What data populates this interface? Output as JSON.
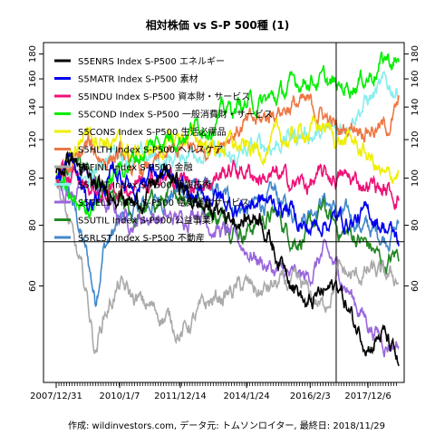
{
  "chart_data": {
    "type": "line",
    "title": "相対株価 vs S-P 500種 (1)",
    "caption": "作成: wildinvestors.com, データ元: トムソンロイター, 最終日: 2018/11/29",
    "scale": "log",
    "ylim": [
      38,
      190
    ],
    "y_ticks": [
      60,
      80,
      100,
      120,
      140,
      160,
      180
    ],
    "x_range": [
      "2007/12/31",
      "2018/11/29"
    ],
    "x_ticks": [
      "2007/12/31",
      "2010/1/7",
      "2011/12/14",
      "2014/1/24",
      "2016/2/3",
      "2017/12/6"
    ],
    "x_minor_ticks_per_month": true,
    "crosshair": {
      "date": "2016/12/1",
      "value": 74
    },
    "legend_position": "top-left",
    "series": [
      {
        "name": "S5ENRS Index S-P500 エネルギー",
        "color": "#000000",
        "points": [
          [
            "2007/12/31",
            100
          ],
          [
            "2008/6/30",
            112
          ],
          [
            "2008/12/31",
            98
          ],
          [
            "2009/6/30",
            92
          ],
          [
            "2009/12/31",
            96
          ],
          [
            "2010/6/30",
            88
          ],
          [
            "2010/12/31",
            95
          ],
          [
            "2011/6/30",
            102
          ],
          [
            "2011/12/31",
            96
          ],
          [
            "2012/6/30",
            88
          ],
          [
            "2012/12/31",
            86
          ],
          [
            "2013/6/30",
            84
          ],
          [
            "2013/12/31",
            82
          ],
          [
            "2014/6/30",
            85
          ],
          [
            "2014/12/31",
            70
          ],
          [
            "2015/6/30",
            64
          ],
          [
            "2015/12/31",
            54
          ],
          [
            "2016/6/30",
            58
          ],
          [
            "2016/12/31",
            60
          ],
          [
            "2017/6/30",
            50
          ],
          [
            "2017/12/31",
            46
          ],
          [
            "2018/5/31",
            48
          ],
          [
            "2018/11/29",
            41
          ]
        ]
      },
      {
        "name": "S5MATR Index S-P500 素材",
        "color": "#0000ee",
        "points": [
          [
            "2007/12/31",
            100
          ],
          [
            "2008/6/30",
            108
          ],
          [
            "2008/12/31",
            88
          ],
          [
            "2009/6/30",
            96
          ],
          [
            "2009/12/31",
            102
          ],
          [
            "2010/6/30",
            96
          ],
          [
            "2010/12/31",
            104
          ],
          [
            "2011/6/30",
            100
          ],
          [
            "2011/12/31",
            92
          ],
          [
            "2012/6/30",
            90
          ],
          [
            "2012/12/31",
            93
          ],
          [
            "2013/6/30",
            88
          ],
          [
            "2013/12/31",
            88
          ],
          [
            "2014/6/30",
            90
          ],
          [
            "2014/12/31",
            88
          ],
          [
            "2015/6/30",
            86
          ],
          [
            "2015/12/31",
            78
          ],
          [
            "2016/6/30",
            82
          ],
          [
            "2016/12/31",
            82
          ],
          [
            "2017/6/30",
            82
          ],
          [
            "2017/12/31",
            84
          ],
          [
            "2018/6/30",
            80
          ],
          [
            "2018/11/29",
            74
          ]
        ]
      },
      {
        "name": "S5INDU Index S-P500 資本財・サービス",
        "color": "#ee1177",
        "points": [
          [
            "2007/12/31",
            100
          ],
          [
            "2008/6/30",
            100
          ],
          [
            "2008/12/31",
            96
          ],
          [
            "2009/6/30",
            92
          ],
          [
            "2009/12/31",
            95
          ],
          [
            "2010/6/30",
            98
          ],
          [
            "2010/12/31",
            103
          ],
          [
            "2011/6/30",
            100
          ],
          [
            "2011/12/31",
            99
          ],
          [
            "2012/6/30",
            98
          ],
          [
            "2012/12/31",
            100
          ],
          [
            "2013/6/30",
            104
          ],
          [
            "2013/12/31",
            104
          ],
          [
            "2014/6/30",
            101
          ],
          [
            "2014/12/31",
            100
          ],
          [
            "2015/6/30",
            98
          ],
          [
            "2015/12/31",
            97
          ],
          [
            "2016/6/30",
            100
          ],
          [
            "2016/12/31",
            101
          ],
          [
            "2017/6/30",
            98
          ],
          [
            "2017/12/31",
            98
          ],
          [
            "2018/6/30",
            94
          ],
          [
            "2018/11/29",
            92
          ]
        ]
      },
      {
        "name": "S5COND Index S-P500 一般消費財・サービス",
        "color": "#00ee00",
        "points": [
          [
            "2007/12/31",
            100
          ],
          [
            "2008/6/30",
            88
          ],
          [
            "2008/12/31",
            88
          ],
          [
            "2009/6/30",
            94
          ],
          [
            "2009/12/31",
            104
          ],
          [
            "2010/6/30",
            110
          ],
          [
            "2010/12/31",
            116
          ],
          [
            "2011/6/30",
            122
          ],
          [
            "2011/12/31",
            124
          ],
          [
            "2012/6/30",
            128
          ],
          [
            "2012/12/31",
            132
          ],
          [
            "2013/6/30",
            138
          ],
          [
            "2013/12/31",
            142
          ],
          [
            "2014/6/30",
            142
          ],
          [
            "2014/12/31",
            146
          ],
          [
            "2015/6/30",
            154
          ],
          [
            "2015/12/31",
            162
          ],
          [
            "2016/6/30",
            158
          ],
          [
            "2016/12/31",
            152
          ],
          [
            "2017/6/30",
            158
          ],
          [
            "2017/12/31",
            164
          ],
          [
            "2018/6/30",
            176
          ],
          [
            "2018/11/29",
            172
          ]
        ]
      },
      {
        "name": "S5CONS Index S-P500 生活必需品",
        "color": "#eeee00",
        "points": [
          [
            "2007/12/31",
            100
          ],
          [
            "2008/6/30",
            112
          ],
          [
            "2008/12/31",
            128
          ],
          [
            "2009/6/30",
            122
          ],
          [
            "2009/12/31",
            116
          ],
          [
            "2010/6/30",
            112
          ],
          [
            "2010/12/31",
            114
          ],
          [
            "2011/6/30",
            116
          ],
          [
            "2011/12/31",
            122
          ],
          [
            "2012/6/30",
            120
          ],
          [
            "2012/12/31",
            116
          ],
          [
            "2013/6/30",
            118
          ],
          [
            "2013/12/31",
            114
          ],
          [
            "2014/6/30",
            114
          ],
          [
            "2014/12/31",
            120
          ],
          [
            "2015/6/30",
            120
          ],
          [
            "2015/12/31",
            126
          ],
          [
            "2016/6/30",
            128
          ],
          [
            "2016/12/31",
            120
          ],
          [
            "2017/6/30",
            118
          ],
          [
            "2017/12/31",
            110
          ],
          [
            "2018/6/30",
            98
          ],
          [
            "2018/11/29",
            104
          ]
        ]
      },
      {
        "name": "S5HLTH Index S-P500 ヘルスケア",
        "color": "#ee7744",
        "points": [
          [
            "2007/12/31",
            100
          ],
          [
            "2008/6/30",
            104
          ],
          [
            "2008/12/31",
            116
          ],
          [
            "2009/6/30",
            110
          ],
          [
            "2009/12/31",
            112
          ],
          [
            "2010/6/30",
            102
          ],
          [
            "2010/12/31",
            104
          ],
          [
            "2011/6/30",
            110
          ],
          [
            "2011/12/31",
            114
          ],
          [
            "2012/6/30",
            116
          ],
          [
            "2012/12/31",
            118
          ],
          [
            "2013/6/30",
            124
          ],
          [
            "2013/12/31",
            128
          ],
          [
            "2014/6/30",
            130
          ],
          [
            "2014/12/31",
            138
          ],
          [
            "2015/6/30",
            142
          ],
          [
            "2015/12/31",
            140
          ],
          [
            "2016/6/30",
            136
          ],
          [
            "2016/12/31",
            124
          ],
          [
            "2017/6/30",
            130
          ],
          [
            "2017/12/31",
            128
          ],
          [
            "2018/6/30",
            126
          ],
          [
            "2018/11/29",
            140
          ]
        ]
      },
      {
        "name": "S5FINL Index S-P500 金融",
        "color": "#aaaaaa",
        "points": [
          [
            "2007/12/31",
            100
          ],
          [
            "2008/6/30",
            76
          ],
          [
            "2008/12/31",
            56
          ],
          [
            "2009/3/31",
            44
          ],
          [
            "2009/6/30",
            52
          ],
          [
            "2009/12/31",
            60
          ],
          [
            "2010/6/30",
            56
          ],
          [
            "2010/12/31",
            54
          ],
          [
            "2011/6/30",
            52
          ],
          [
            "2011/12/31",
            48
          ],
          [
            "2012/6/30",
            52
          ],
          [
            "2012/12/31",
            56
          ],
          [
            "2013/6/30",
            58
          ],
          [
            "2013/12/31",
            60
          ],
          [
            "2014/6/30",
            58
          ],
          [
            "2014/12/31",
            60
          ],
          [
            "2015/6/30",
            60
          ],
          [
            "2015/12/31",
            58
          ],
          [
            "2016/6/30",
            54
          ],
          [
            "2016/12/31",
            64
          ],
          [
            "2017/6/30",
            62
          ],
          [
            "2017/12/31",
            64
          ],
          [
            "2018/6/30",
            62
          ],
          [
            "2018/11/29",
            62
          ]
        ]
      },
      {
        "name": "S5INFT Index S-P500 情報技術",
        "color": "#88eeee",
        "points": [
          [
            "2007/12/31",
            100
          ],
          [
            "2008/6/30",
            102
          ],
          [
            "2008/12/31",
            96
          ],
          [
            "2009/6/30",
            110
          ],
          [
            "2009/12/31",
            116
          ],
          [
            "2010/6/30",
            108
          ],
          [
            "2010/12/31",
            110
          ],
          [
            "2011/6/30",
            108
          ],
          [
            "2011/12/31",
            112
          ],
          [
            "2012/6/30",
            116
          ],
          [
            "2012/12/31",
            112
          ],
          [
            "2013/6/30",
            108
          ],
          [
            "2013/12/31",
            112
          ],
          [
            "2014/6/30",
            116
          ],
          [
            "2014/12/31",
            118
          ],
          [
            "2015/6/30",
            122
          ],
          [
            "2015/12/31",
            124
          ],
          [
            "2016/6/30",
            122
          ],
          [
            "2016/12/31",
            126
          ],
          [
            "2017/6/30",
            138
          ],
          [
            "2017/12/31",
            146
          ],
          [
            "2018/6/30",
            154
          ],
          [
            "2018/11/29",
            152
          ]
        ]
      },
      {
        "name": "S5TELS Index S-P500 電気通信サービス",
        "color": "#9966dd",
        "points": [
          [
            "2007/12/31",
            100
          ],
          [
            "2008/6/30",
            92
          ],
          [
            "2008/12/31",
            104
          ],
          [
            "2009/6/30",
            88
          ],
          [
            "2009/12/31",
            84
          ],
          [
            "2010/6/30",
            82
          ],
          [
            "2010/12/31",
            84
          ],
          [
            "2011/6/30",
            82
          ],
          [
            "2011/12/31",
            82
          ],
          [
            "2012/6/30",
            88
          ],
          [
            "2012/12/31",
            80
          ],
          [
            "2013/6/30",
            76
          ],
          [
            "2013/12/31",
            72
          ],
          [
            "2014/6/30",
            68
          ],
          [
            "2014/12/31",
            64
          ],
          [
            "2015/6/30",
            62
          ],
          [
            "2015/12/31",
            62
          ],
          [
            "2016/6/30",
            70
          ],
          [
            "2016/12/31",
            64
          ],
          [
            "2017/6/30",
            56
          ],
          [
            "2017/12/31",
            50
          ],
          [
            "2018/6/30",
            46
          ],
          [
            "2018/11/29",
            46
          ]
        ]
      },
      {
        "name": "S5UTIL Index S-P500 公益事業",
        "color": "#228822",
        "points": [
          [
            "2007/12/31",
            100
          ],
          [
            "2008/6/30",
            102
          ],
          [
            "2008/12/31",
            108
          ],
          [
            "2009/6/30",
            90
          ],
          [
            "2009/12/31",
            88
          ],
          [
            "2010/6/30",
            82
          ],
          [
            "2010/12/31",
            88
          ],
          [
            "2011/6/30",
            90
          ],
          [
            "2011/12/31",
            94
          ],
          [
            "2012/6/30",
            92
          ],
          [
            "2012/12/31",
            84
          ],
          [
            "2013/6/30",
            82
          ],
          [
            "2013/12/31",
            78
          ],
          [
            "2014/6/30",
            82
          ],
          [
            "2014/12/31",
            84
          ],
          [
            "2015/6/30",
            76
          ],
          [
            "2015/12/31",
            76
          ],
          [
            "2016/6/30",
            86
          ],
          [
            "2016/12/31",
            78
          ],
          [
            "2017/6/30",
            76
          ],
          [
            "2017/12/31",
            72
          ],
          [
            "2018/6/30",
            66
          ],
          [
            "2018/11/29",
            70
          ]
        ]
      },
      {
        "name": "S5RLST Index S-P500 不動産",
        "color": "#4488cc",
        "points": [
          [
            "2007/12/31",
            100
          ],
          [
            "2008/6/30",
            90
          ],
          [
            "2008/12/31",
            68
          ],
          [
            "2009/3/31",
            56
          ],
          [
            "2009/6/30",
            72
          ],
          [
            "2009/12/31",
            80
          ],
          [
            "2010/6/30",
            86
          ],
          [
            "2010/12/31",
            88
          ],
          [
            "2011/6/30",
            92
          ],
          [
            "2011/12/31",
            94
          ],
          [
            "2012/6/30",
            96
          ],
          [
            "2012/12/31",
            92
          ],
          [
            "2013/6/30",
            90
          ],
          [
            "2013/12/31",
            86
          ],
          [
            "2014/6/30",
            88
          ],
          [
            "2014/12/31",
            92
          ],
          [
            "2015/6/30",
            84
          ],
          [
            "2015/12/31",
            86
          ],
          [
            "2016/6/30",
            92
          ],
          [
            "2016/12/31",
            84
          ],
          [
            "2017/6/30",
            82
          ],
          [
            "2017/12/31",
            78
          ],
          [
            "2018/6/30",
            76
          ],
          [
            "2018/11/29",
            80
          ]
        ]
      }
    ]
  }
}
